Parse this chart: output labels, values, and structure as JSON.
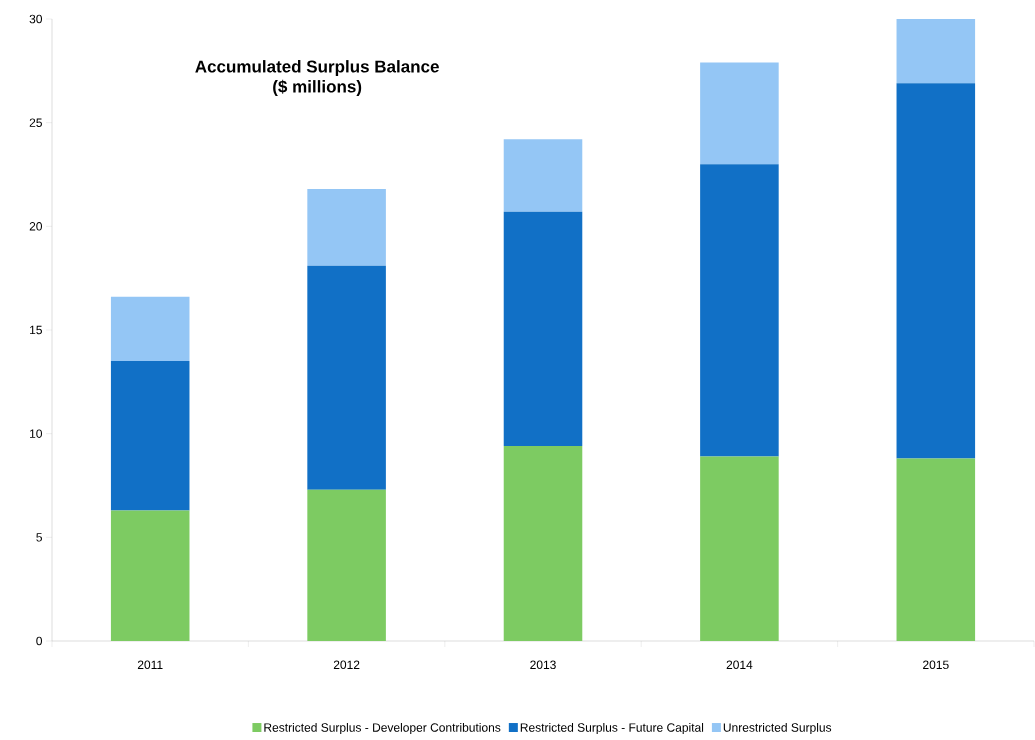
{
  "chart_data": {
    "type": "bar",
    "title": "**Accumulated Surplus Balance**\n**($ millions)**",
    "stacked": true,
    "categories": [
      "2011",
      "2012",
      "2013",
      "2014",
      "2015"
    ],
    "series": [
      {
        "name": "Restricted Surplus - Developer Contributions",
        "color": "#7dcb62",
        "values": [
          6.3,
          7.3,
          9.4,
          8.9,
          8.8
        ]
      },
      {
        "name": "Restricted Surplus - Future Capital",
        "color": "#1170c6",
        "values": [
          7.2,
          10.8,
          11.3,
          14.1,
          18.1
        ]
      },
      {
        "name": "Unrestricted Surplus",
        "color": "#94c6f5",
        "values": [
          3.1,
          3.7,
          3.5,
          4.9,
          3.1
        ]
      }
    ],
    "ylim": [
      0,
      30
    ],
    "yticks": [
      0,
      5,
      10,
      15,
      20,
      25,
      30
    ],
    "grid": false,
    "legend": "bottom"
  }
}
